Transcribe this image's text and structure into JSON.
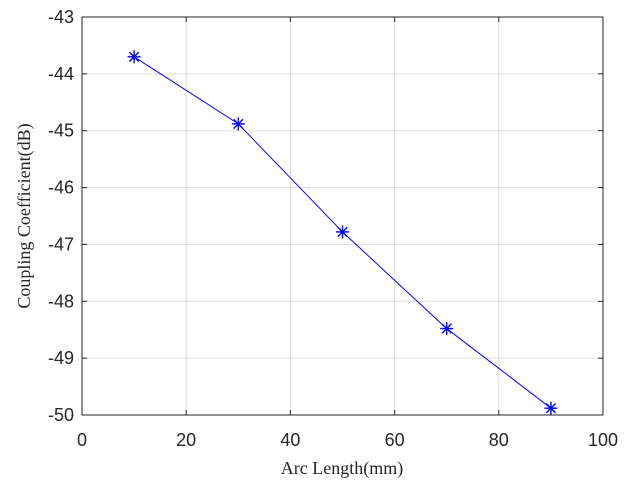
{
  "chart_data": {
    "type": "line",
    "title": "",
    "xlabel": "Arc Length(mm)",
    "ylabel": "Coupling Coefficient(dB)",
    "xlim": [
      0,
      100
    ],
    "ylim": [
      -50,
      -43
    ],
    "xticks": [
      0,
      20,
      40,
      60,
      80,
      100
    ],
    "yticks": [
      -43,
      -44,
      -45,
      -46,
      -47,
      -48,
      -49,
      -50
    ],
    "grid": true,
    "legend": "none",
    "series": [
      {
        "x": [
          10,
          30,
          50,
          70,
          90
        ],
        "y": [
          -43.7,
          -44.88,
          -46.78,
          -48.48,
          -49.88
        ],
        "color": "#0000ff",
        "marker": "asterisk"
      }
    ]
  }
}
